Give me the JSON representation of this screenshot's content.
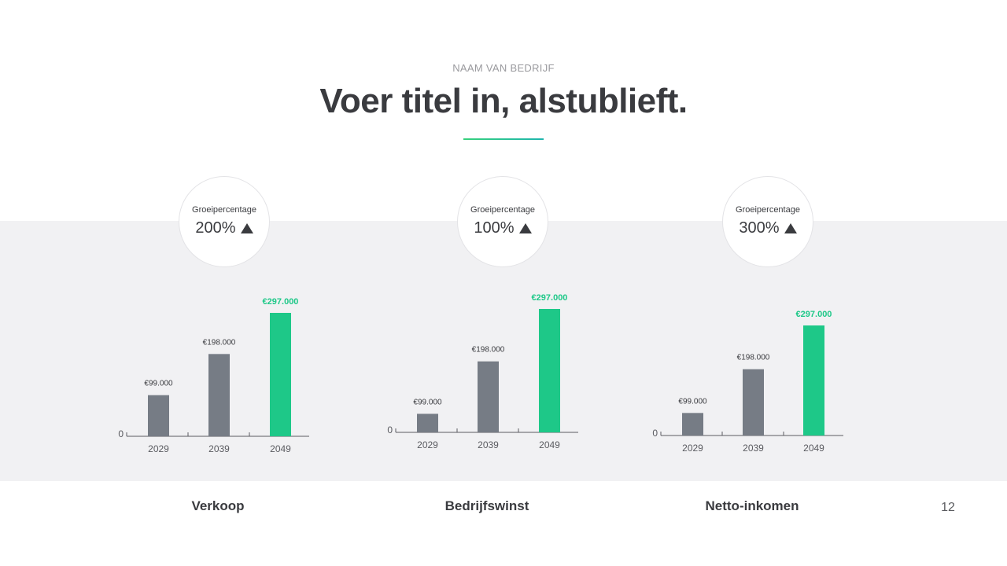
{
  "header": {
    "company": "NAAM VAN BEDRIJF",
    "title": "Voer titel in, alstublieft."
  },
  "colors": {
    "bar_grey": "#767c85",
    "bar_accent": "#1ec888",
    "accent_label": "#1ec888",
    "band": "#f1f1f3",
    "text": "#3a3b3f"
  },
  "badges": [
    {
      "label": "Groeipercentage",
      "value": "200%",
      "icon": "triangle-up-icon"
    },
    {
      "label": "Groeipercentage",
      "value": "100%",
      "icon": "triangle-up-icon"
    },
    {
      "label": "Groeipercentage",
      "value": "300%",
      "icon": "triangle-up-icon"
    }
  ],
  "categories": [
    "Verkoop",
    "Bedrijfswinst",
    "Netto-inkomen"
  ],
  "page_number": "12",
  "chart_data": [
    {
      "type": "bar",
      "categories": [
        "2029",
        "2039",
        "2049"
      ],
      "values": [
        99000,
        198000,
        297000
      ],
      "value_labels": [
        "€99.000",
        "€198.000",
        "€297.000"
      ],
      "highlight_index": 2,
      "zero_label": "0",
      "base_value": 0,
      "ylim": [
        0,
        297000
      ],
      "title": "",
      "xlabel": "",
      "ylabel": ""
    },
    {
      "type": "bar",
      "categories": [
        "2029",
        "2039",
        "2049"
      ],
      "values": [
        99000,
        198000,
        297000
      ],
      "value_labels": [
        "€99.000",
        "€198.000",
        "€297.000"
      ],
      "highlight_index": 2,
      "zero_label": "0",
      "base_value": 64000,
      "ylim": [
        64000,
        297000
      ],
      "title": "",
      "xlabel": "",
      "ylabel": ""
    },
    {
      "type": "bar",
      "categories": [
        "2029",
        "2039",
        "2049"
      ],
      "values": [
        99000,
        198000,
        297000
      ],
      "value_labels": [
        "€99.000",
        "€198.000",
        "€297.000"
      ],
      "highlight_index": 2,
      "zero_label": "0",
      "base_value": 48000,
      "ylim": [
        48000,
        297000
      ],
      "title": "",
      "xlabel": "",
      "ylabel": ""
    }
  ]
}
